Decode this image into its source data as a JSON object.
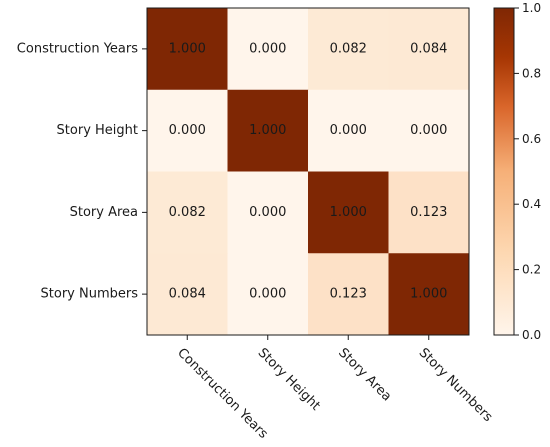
{
  "chart_data": {
    "type": "heatmap",
    "title": "",
    "xlabel": "",
    "ylabel": "",
    "rows": [
      "Construction Years",
      "Story Height",
      "Story Area",
      "Story Numbers"
    ],
    "columns": [
      "Construction Years",
      "Story Height",
      "Story Area",
      "Story Numbers"
    ],
    "values": [
      [
        1.0,
        0.0,
        0.082,
        0.084
      ],
      [
        0.0,
        1.0,
        0.0,
        0.0
      ],
      [
        0.082,
        0.0,
        1.0,
        0.123
      ],
      [
        0.084,
        0.0,
        0.123,
        1.0
      ]
    ],
    "value_labels": [
      [
        "1.000",
        "0.000",
        "0.082",
        "0.084"
      ],
      [
        "0.000",
        "1.000",
        "0.000",
        "0.000"
      ],
      [
        "0.082",
        "0.000",
        "1.000",
        "0.123"
      ],
      [
        "0.084",
        "0.000",
        "0.123",
        "1.000"
      ]
    ],
    "colormap": "Oranges-brown",
    "color_low": "#fff5eb",
    "color_mid": "#f6b078",
    "color_high": "#7f2704",
    "colorbar": {
      "range": [
        0.0,
        1.0
      ],
      "ticks": [
        0.0,
        0.2,
        0.4,
        0.6,
        0.8,
        1.0
      ],
      "tick_labels": [
        "0.0",
        "0.2",
        "0.4",
        "0.6",
        "0.8",
        "1.0"
      ]
    },
    "grid": false,
    "legend": "colorbar-right"
  }
}
